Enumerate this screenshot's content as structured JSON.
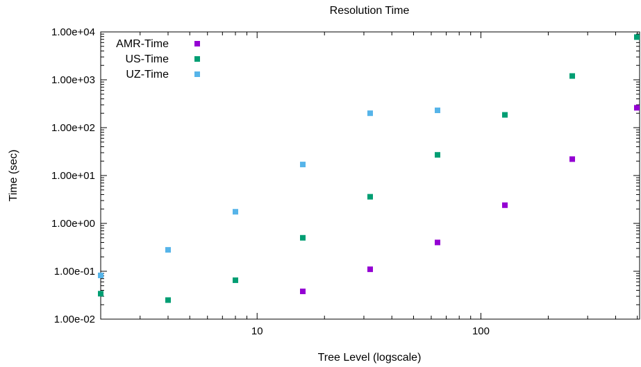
{
  "chart_data": {
    "type": "scatter",
    "title": "Resolution Time",
    "xlabel": "Tree Level (logscale)",
    "ylabel": "Time (sec)",
    "xscale": "log",
    "yscale": "log",
    "xlim": [
      2,
      512
    ],
    "ylim": [
      0.01,
      10000
    ],
    "x_ticks": [
      {
        "value": 10,
        "label": "10"
      },
      {
        "value": 100,
        "label": "100"
      }
    ],
    "y_ticks": [
      {
        "value": 0.01,
        "label": "1.00e-02"
      },
      {
        "value": 0.1,
        "label": "1.00e-01"
      },
      {
        "value": 1,
        "label": "1.00e+00"
      },
      {
        "value": 10,
        "label": "1.00e+01"
      },
      {
        "value": 100,
        "label": "1.00e+02"
      },
      {
        "value": 1000,
        "label": "1.00e+03"
      },
      {
        "value": 10000,
        "label": "1.00e+04"
      }
    ],
    "grid": false,
    "legend_position": "top-left",
    "series": [
      {
        "name": "AMR-Time",
        "color": "#9400d3",
        "marker": "square",
        "points": [
          [
            16,
            0.038
          ],
          [
            32,
            0.11
          ],
          [
            64,
            0.4
          ],
          [
            128,
            2.4
          ],
          [
            256,
            22
          ],
          [
            512,
            260
          ]
        ]
      },
      {
        "name": "US-Time",
        "color": "#009e73",
        "marker": "square",
        "points": [
          [
            2,
            0.034
          ],
          [
            4,
            0.025
          ],
          [
            8,
            0.065
          ],
          [
            16,
            0.5
          ],
          [
            32,
            3.6
          ],
          [
            64,
            27
          ],
          [
            128,
            185
          ],
          [
            256,
            1200
          ],
          [
            512,
            7800
          ]
        ]
      },
      {
        "name": "UZ-Time",
        "color": "#56b4e9",
        "marker": "square",
        "points": [
          [
            2,
            0.082
          ],
          [
            4,
            0.28
          ],
          [
            8,
            1.75
          ],
          [
            16,
            17
          ],
          [
            32,
            200
          ],
          [
            64,
            230
          ]
        ]
      }
    ]
  }
}
